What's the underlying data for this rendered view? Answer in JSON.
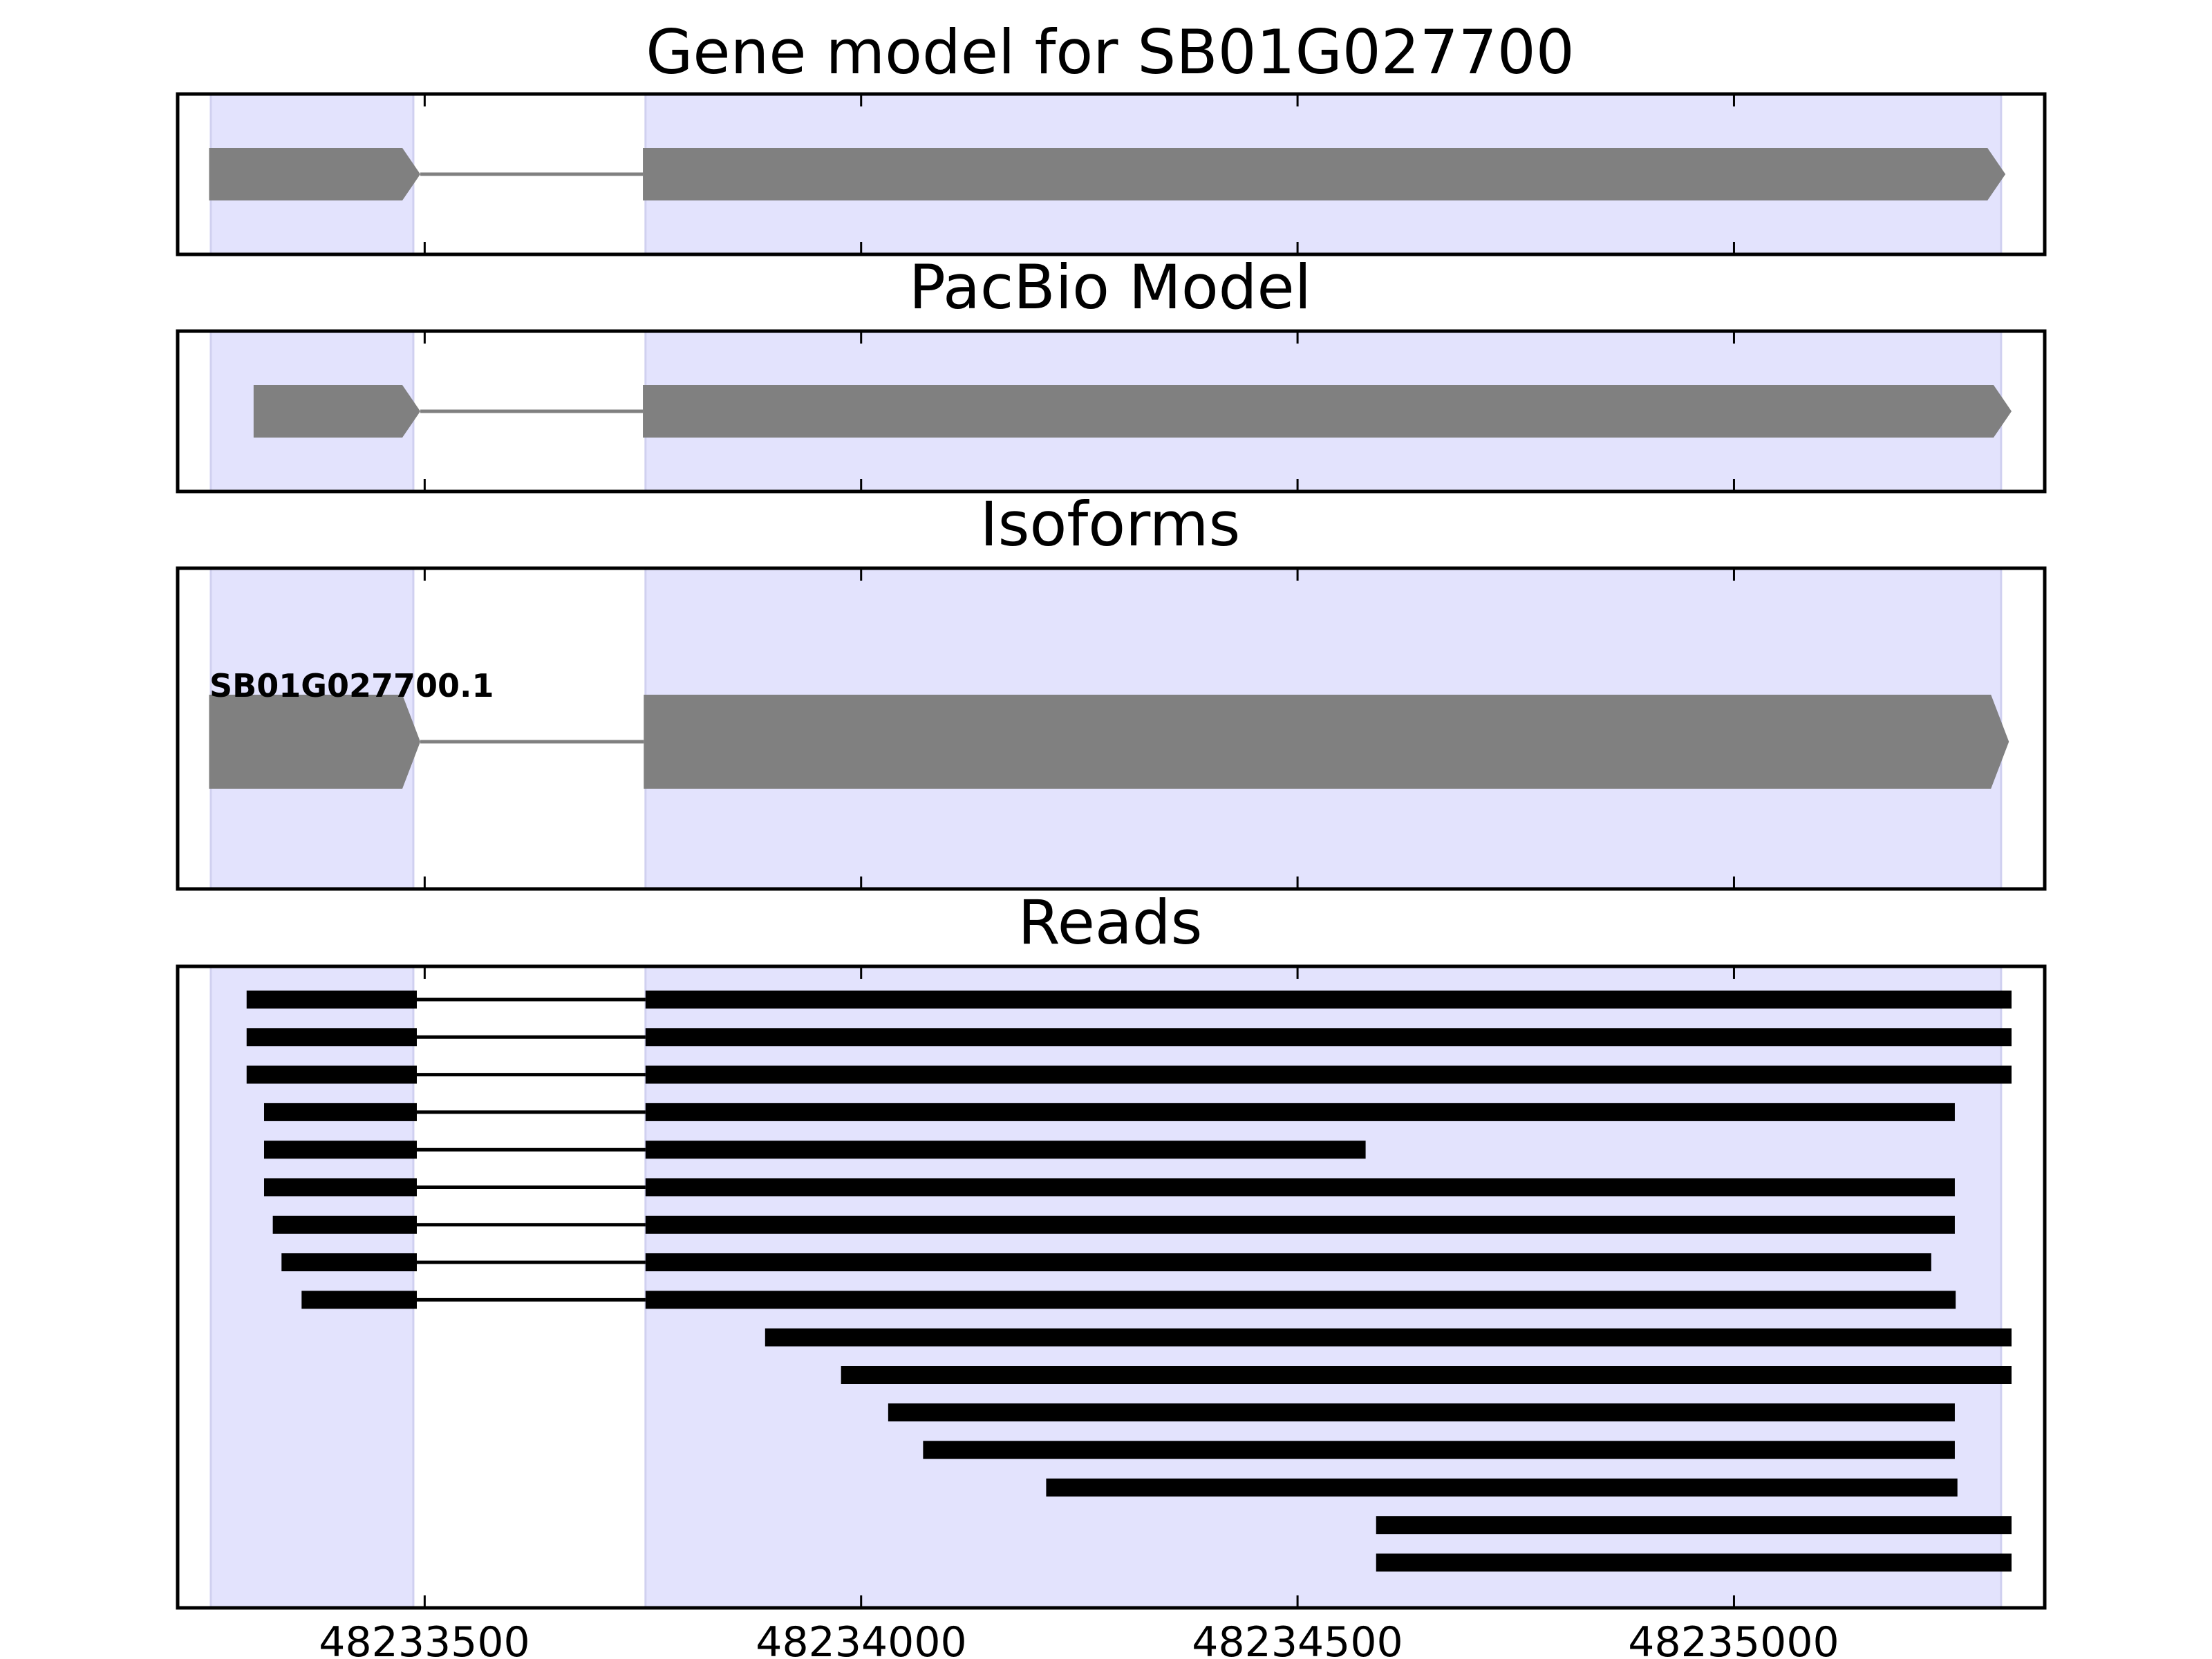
{
  "chart_data": {
    "type": "gene_track",
    "x_range": [
      48233217,
      48235356
    ],
    "x_ticks": [
      48233500,
      48234000,
      48234500,
      48235000
    ],
    "x_tick_labels": [
      "48233500",
      "48234000",
      "48234500",
      "48235000"
    ],
    "colors": {
      "exon_shade": "#e3e3fd",
      "exon_shade_edge": "#d0d0f0",
      "feature": "#808080",
      "read": "#000000",
      "frame": "#000000"
    },
    "shaded_exon_regions": [
      [
        48233255,
        48233487
      ],
      [
        48233753,
        48235306
      ]
    ],
    "panels": [
      {
        "id": "gene-model",
        "title": "Gene model for SB01G027700",
        "exons": [
          [
            48233253,
            48233495
          ],
          [
            48233750,
            48235311
          ]
        ],
        "strand": "+"
      },
      {
        "id": "pacbio-model",
        "title": "PacBio Model",
        "exons": [
          [
            48233304,
            48233495
          ],
          [
            48233750,
            48235318
          ]
        ],
        "strand": "+"
      },
      {
        "id": "isoforms",
        "title": "Isoforms",
        "isoforms": [
          {
            "label": "SB01G027700.1",
            "exons": [
              [
                48233253,
                48233495
              ],
              [
                48233751,
                48235315
              ]
            ],
            "strand": "+"
          }
        ]
      },
      {
        "id": "reads",
        "title": "Reads",
        "reads": [
          {
            "exons": [
              [
                48233296,
                48233491
              ],
              [
                48233753,
                48235318
              ]
            ]
          },
          {
            "exons": [
              [
                48233296,
                48233491
              ],
              [
                48233753,
                48235318
              ]
            ]
          },
          {
            "exons": [
              [
                48233296,
                48233491
              ],
              [
                48233753,
                48235318
              ]
            ]
          },
          {
            "exons": [
              [
                48233316,
                48233491
              ],
              [
                48233753,
                48235253
              ]
            ]
          },
          {
            "exons": [
              [
                48233316,
                48233491
              ],
              [
                48233753,
                48234578
              ]
            ]
          },
          {
            "exons": [
              [
                48233316,
                48233491
              ],
              [
                48233753,
                48235253
              ]
            ]
          },
          {
            "exons": [
              [
                48233326,
                48233491
              ],
              [
                48233753,
                48235253
              ]
            ]
          },
          {
            "exons": [
              [
                48233336,
                48233491
              ],
              [
                48233753,
                48235226
              ]
            ]
          },
          {
            "exons": [
              [
                48233359,
                48233491
              ],
              [
                48233753,
                48235254
              ]
            ]
          },
          {
            "exons": [
              [
                48233890,
                48235318
              ]
            ]
          },
          {
            "exons": [
              [
                48233977,
                48235318
              ]
            ]
          },
          {
            "exons": [
              [
                48234031,
                48235253
              ]
            ]
          },
          {
            "exons": [
              [
                48234071,
                48235253
              ]
            ]
          },
          {
            "exons": [
              [
                48234212,
                48235256
              ]
            ]
          },
          {
            "exons": [
              [
                48234590,
                48235318
              ]
            ]
          },
          {
            "exons": [
              [
                48234590,
                48235318
              ]
            ]
          }
        ]
      }
    ]
  }
}
